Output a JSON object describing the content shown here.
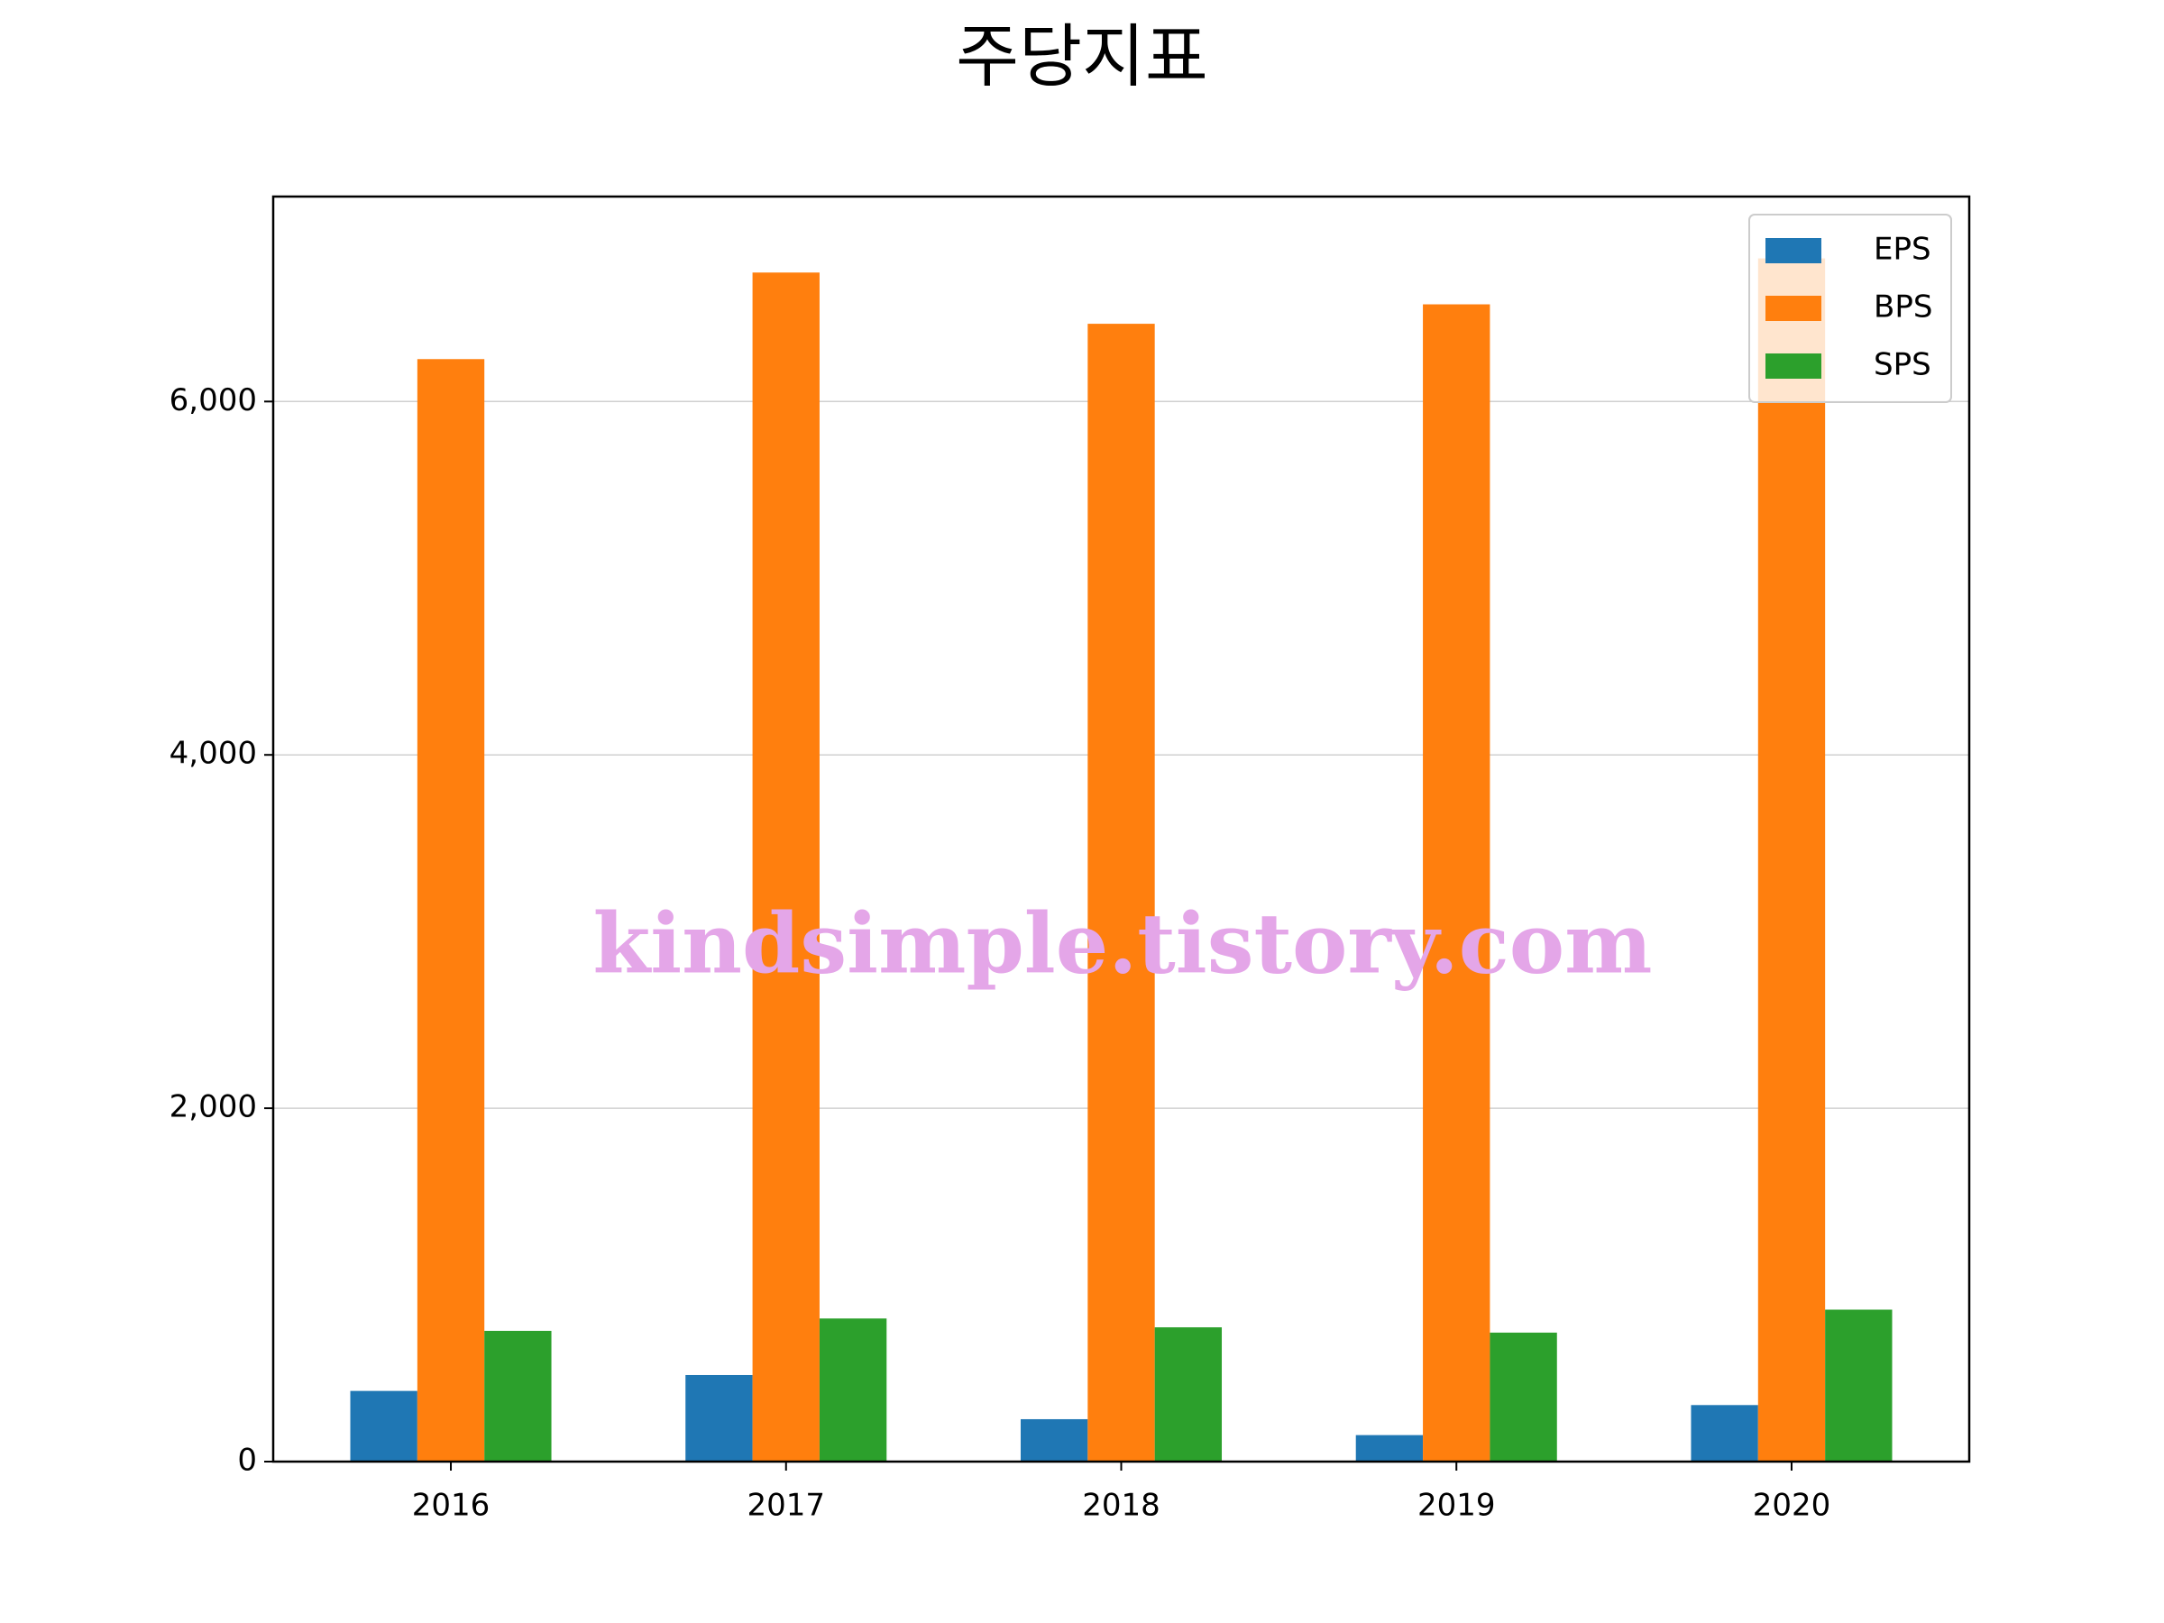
{
  "chart_data": {
    "type": "bar",
    "title": "주당지표",
    "categories": [
      "2016",
      "2017",
      "2018",
      "2019",
      "2020"
    ],
    "series": [
      {
        "name": "EPS",
        "color": "#1f77b4",
        "values": [
          400,
          490,
          240,
          150,
          320
        ]
      },
      {
        "name": "BPS",
        "color": "#ff7f0e",
        "values": [
          6240,
          6730,
          6440,
          6550,
          6810
        ]
      },
      {
        "name": "SPS",
        "color": "#2ca02c",
        "values": [
          740,
          810,
          760,
          730,
          860
        ]
      }
    ],
    "ylim": [
      0,
      7160
    ],
    "yticks": [
      0,
      {
        "value": 2000,
        "label": "2,000"
      },
      {
        "value": 4000,
        "label": "4,000"
      },
      {
        "value": 6000,
        "label": "6,000"
      }
    ],
    "grid": true,
    "legend": "upper right",
    "watermark": "kindsimple.tistory.com"
  }
}
